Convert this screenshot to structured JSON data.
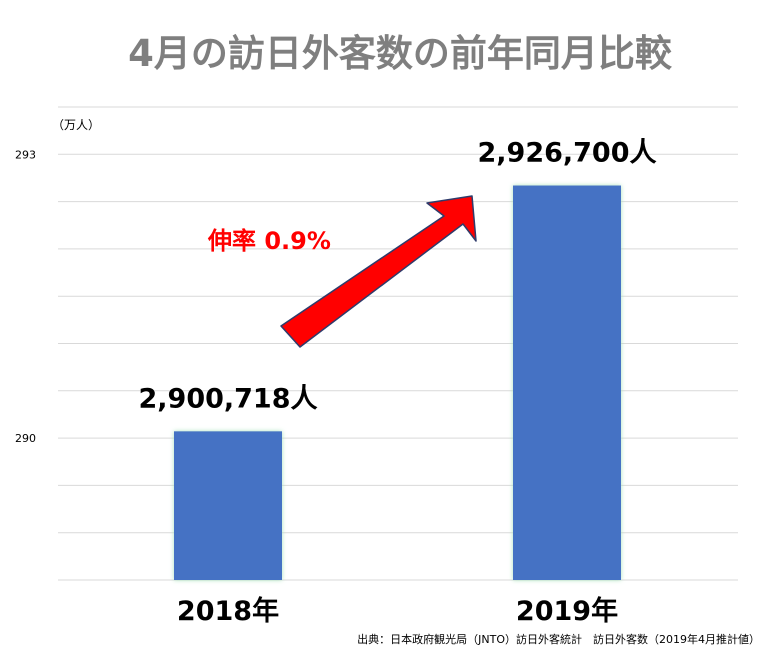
{
  "title": "4月の訪日外客数の前年同月比較",
  "source": "出典：日本政府観光局（JNTO）訪日外客統計　訪日外客数（2019年4月推計値）",
  "colors": {
    "title": "#7f7f7f",
    "bar": "#4472c4",
    "bar_glow": "#a9e3bd",
    "grid": "#d9d9d9",
    "arrow": "#ff0000",
    "arrow_stroke": "#2f3b6b",
    "growth_text": "#ff0000"
  },
  "chart_data": {
    "type": "bar",
    "title": "4月の訪日外客数の前年同月比較",
    "unit_label": "（万人）",
    "categories": [
      "2018年",
      "2019年"
    ],
    "values": [
      290.0718,
      292.67
    ],
    "data_labels": [
      "2,900,718人",
      "2,926,700人"
    ],
    "y_ticks": [
      290,
      293
    ],
    "ylim": [
      288.5,
      293.5
    ],
    "grid": true,
    "annotation": {
      "text": "伸率 0.9%",
      "type": "arrow",
      "from": "2018年",
      "to": "2019年"
    }
  }
}
